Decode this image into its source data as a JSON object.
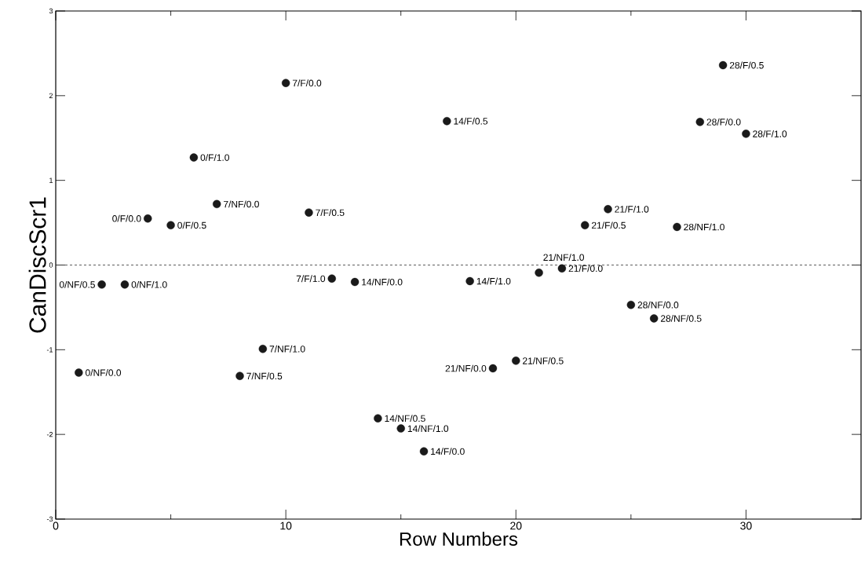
{
  "chart_data": {
    "type": "scatter",
    "xlabel": "Row Numbers",
    "ylabel": "CanDiscScr1",
    "x": [
      1,
      2,
      3,
      4,
      5,
      6,
      7,
      8,
      9,
      10,
      11,
      12,
      13,
      14,
      15,
      16,
      17,
      18,
      19,
      20,
      21,
      22,
      23,
      24,
      25,
      26,
      27,
      28,
      29,
      30
    ],
    "values": [
      -1.27,
      -0.23,
      -0.23,
      0.55,
      0.47,
      1.27,
      0.72,
      -1.31,
      -0.99,
      2.15,
      0.62,
      -0.16,
      -0.2,
      -1.81,
      -1.93,
      -2.2,
      1.7,
      -0.19,
      -1.22,
      -1.13,
      -0.09,
      -0.04,
      0.47,
      0.66,
      -0.47,
      -0.63,
      0.45,
      1.69,
      2.36,
      1.55
    ],
    "color": "#1a1a1a",
    "grid": false,
    "xlim": [
      0,
      35
    ],
    "xticks": [
      0,
      10,
      20,
      30
    ],
    "ylim": [
      -3,
      3
    ],
    "yticks": [
      -3,
      -2,
      -1,
      0,
      1,
      2,
      3
    ],
    "ref_lines": [
      {
        "axis": "y",
        "value": 0,
        "line_style": "dashed",
        "color": "#333333"
      }
    ],
    "annotations": [
      {
        "text": "0/NF/0.0",
        "x": 1,
        "y": -1.27
      },
      {
        "text": "0/NF/0.5",
        "x": 2,
        "y": -0.23
      },
      {
        "text": "0/NF/1.0",
        "x": 3,
        "y": -0.23
      },
      {
        "text": "0/F/0.0",
        "x": 4,
        "y": 0.55
      },
      {
        "text": "0/F/0.5",
        "x": 5,
        "y": 0.47
      },
      {
        "text": "0/F/1.0",
        "x": 6,
        "y": 1.27
      },
      {
        "text": "7/NF/0.0",
        "x": 7,
        "y": 0.72
      },
      {
        "text": "7/NF/0.5",
        "x": 8,
        "y": -1.31
      },
      {
        "text": "7/NF/1.0",
        "x": 9,
        "y": -0.99
      },
      {
        "text": "7/F/0.0",
        "x": 10,
        "y": 2.15
      },
      {
        "text": "7/F/0.5",
        "x": 11,
        "y": 0.62
      },
      {
        "text": "7/F/1.0",
        "x": 12,
        "y": -0.16
      },
      {
        "text": "14/NF/0.0",
        "x": 13,
        "y": -0.2
      },
      {
        "text": "14/NF/0.5",
        "x": 14,
        "y": -1.81
      },
      {
        "text": "14/NF/1.0",
        "x": 15,
        "y": -1.93
      },
      {
        "text": "14/F/0.0",
        "x": 16,
        "y": -2.2
      },
      {
        "text": "14/F/0.5",
        "x": 17,
        "y": 1.7
      },
      {
        "text": "14/F/1.0",
        "x": 18,
        "y": -0.19
      },
      {
        "text": "21/NF/0.0",
        "x": 19,
        "y": -1.22
      },
      {
        "text": "21/NF/0.5",
        "x": 20,
        "y": -1.13
      },
      {
        "text": "21/NF/1.0",
        "x": 21,
        "y": -0.09
      },
      {
        "text": "21/F/0.0",
        "x": 22,
        "y": -0.04
      },
      {
        "text": "21/F/0.5",
        "x": 23,
        "y": 0.47
      },
      {
        "text": "21/F/1.0",
        "x": 24,
        "y": 0.66
      },
      {
        "text": "28/NF/0.0",
        "x": 25,
        "y": -0.47
      },
      {
        "text": "28/NF/0.5",
        "x": 26,
        "y": -0.63
      },
      {
        "text": "28/NF/1.0",
        "x": 27,
        "y": 0.45
      },
      {
        "text": "28/F/0.0",
        "x": 28,
        "y": 1.69
      },
      {
        "text": "28/F/0.5",
        "x": 29,
        "y": 2.36
      },
      {
        "text": "28/F/1.0",
        "x": 30,
        "y": 1.55
      }
    ]
  }
}
